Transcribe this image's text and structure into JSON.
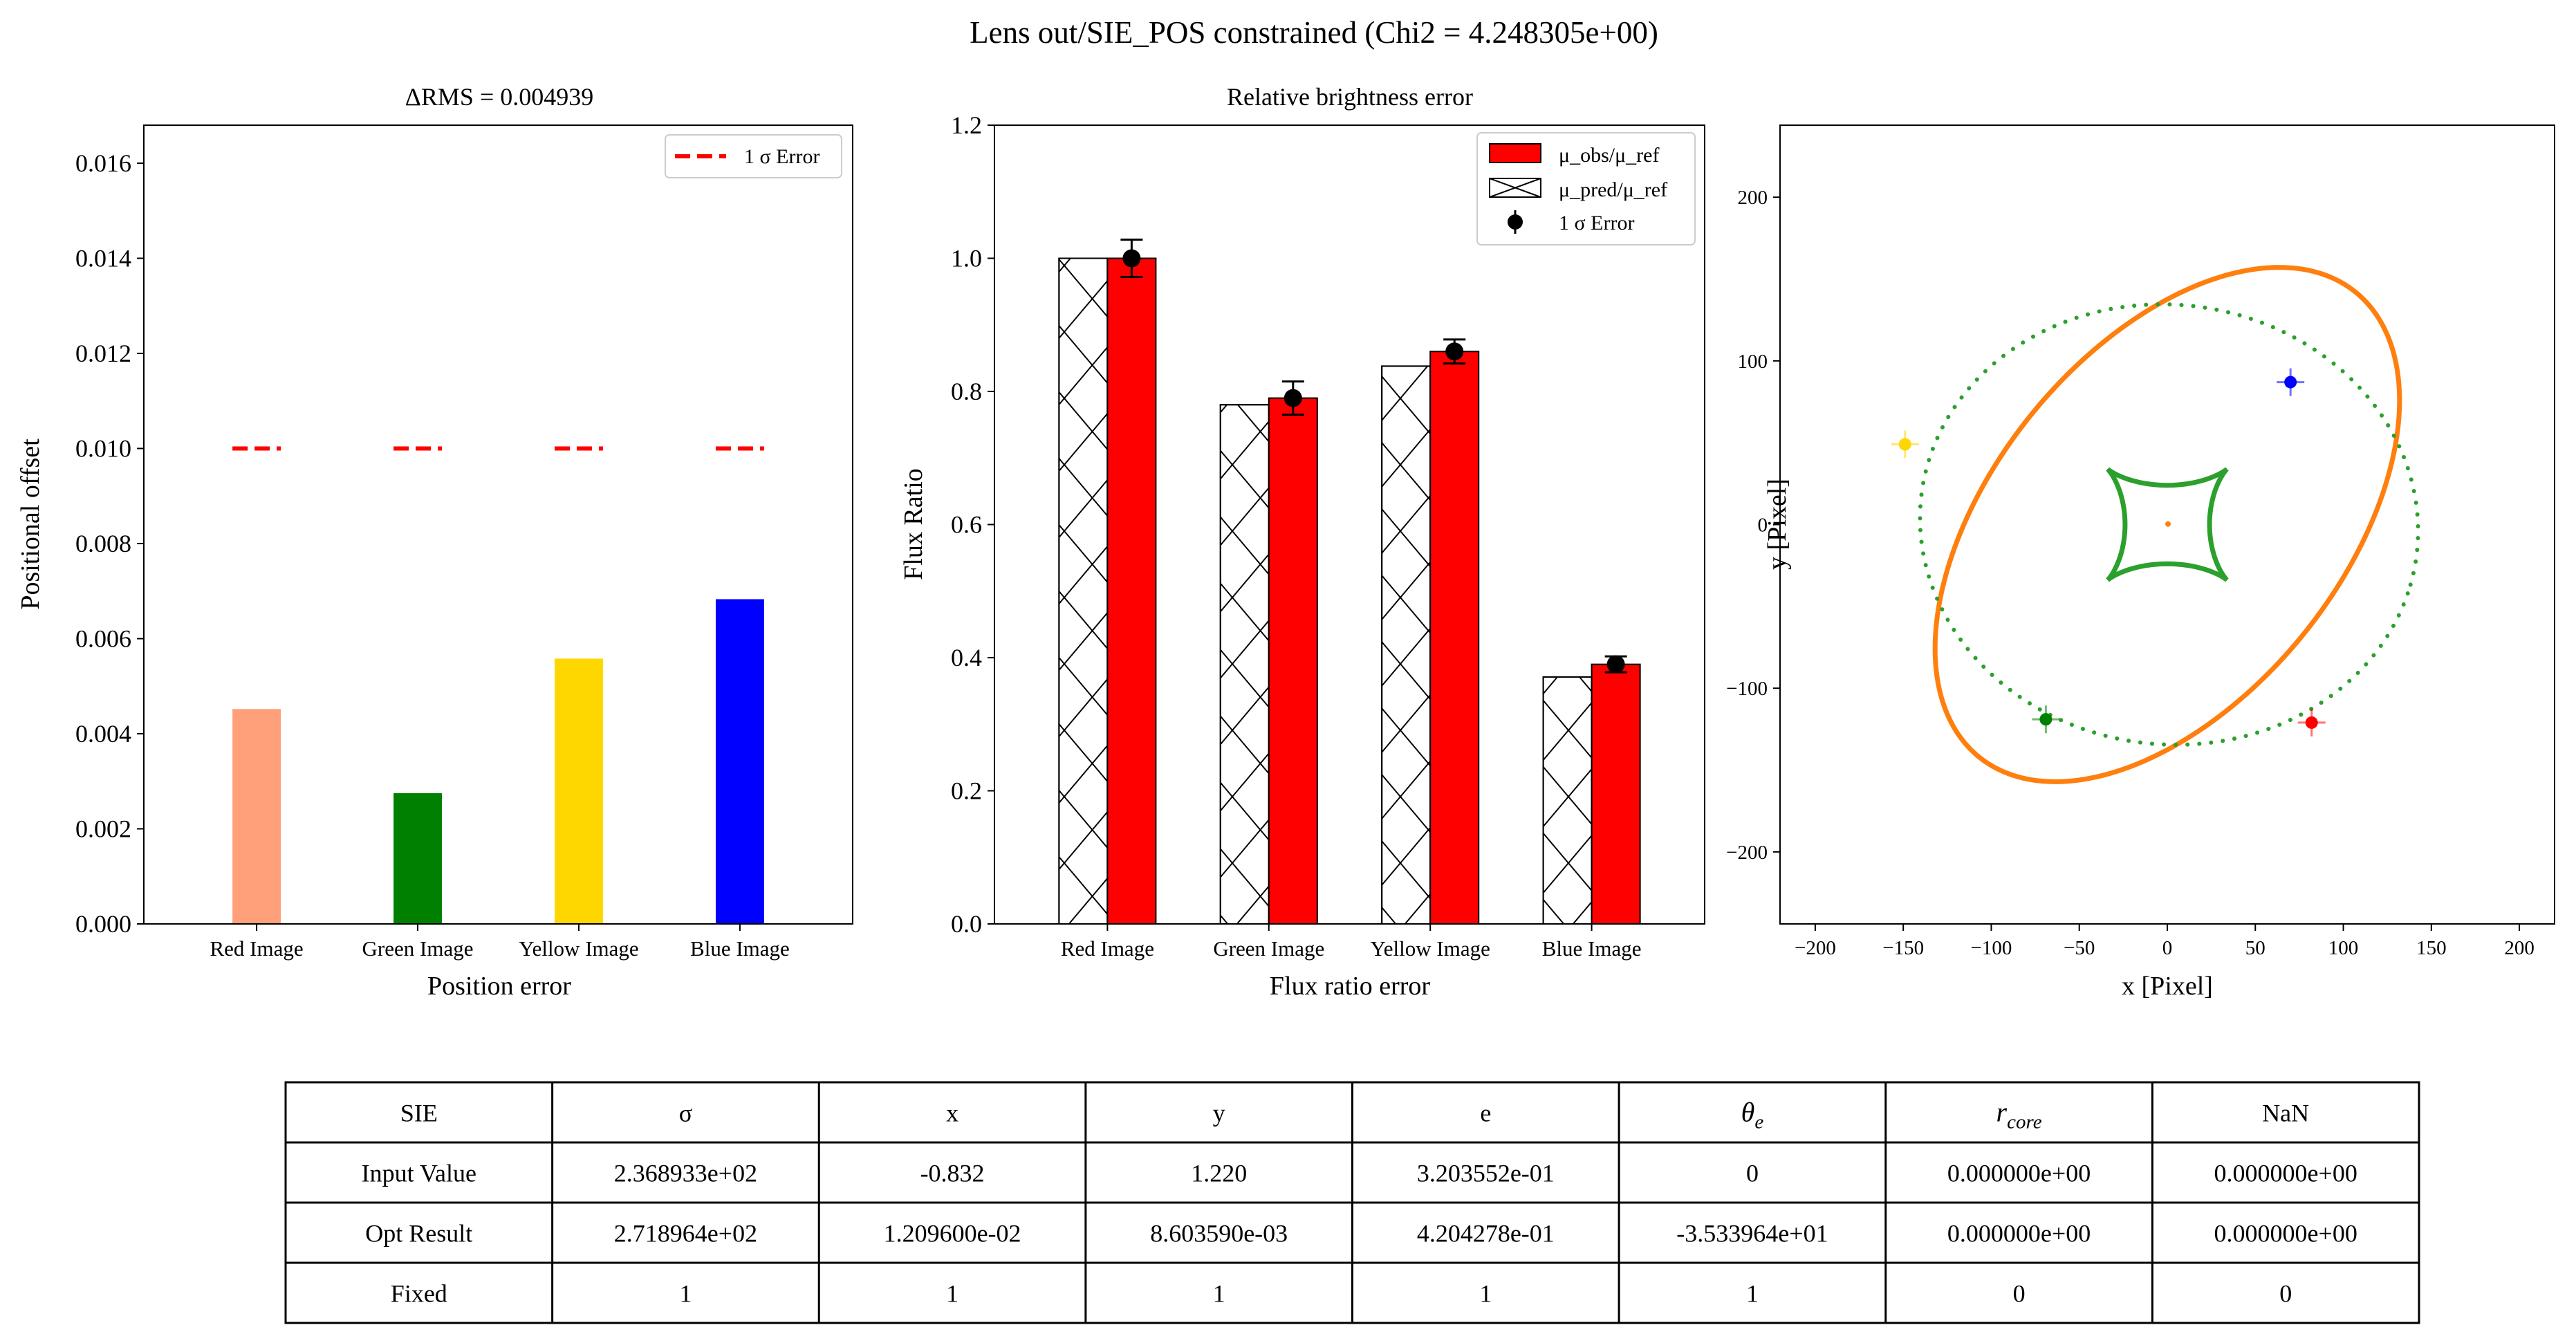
{
  "figure": {
    "suptitle": "Lens out/SIE_POS constrained (Chi2 = 4.248305e+00)"
  },
  "chart_data": [
    {
      "type": "bar",
      "title": "ΔRMS = 0.004939",
      "xlabel": "Position error",
      "ylabel": "Positional offset",
      "ylim": [
        0,
        0.0168
      ],
      "yticks": [
        "0.000",
        "0.002",
        "0.004",
        "0.006",
        "0.008",
        "0.010",
        "0.012",
        "0.014",
        "0.016"
      ],
      "categories": [
        "Red Image",
        "Green Image",
        "Yellow Image",
        "Blue Image"
      ],
      "values": [
        0.00452,
        0.00275,
        0.00558,
        0.00683
      ],
      "colors": [
        "#FFA07A",
        "#008000",
        "#FFD700",
        "#0000FF"
      ],
      "error_line": {
        "name": "1 σ Error",
        "value": 0.01,
        "color": "#FF0000"
      },
      "legend": "upper-right",
      "grid": false
    },
    {
      "type": "bar",
      "title": "Relative brightness error",
      "xlabel": "Flux ratio error",
      "ylabel": "Flux Ratio",
      "ylim": [
        0,
        1.2
      ],
      "yticks": [
        "0.0",
        "0.2",
        "0.4",
        "0.6",
        "0.8",
        "1.0",
        "1.2"
      ],
      "categories": [
        "Red Image",
        "Green Image",
        "Yellow Image",
        "Blue Image"
      ],
      "series": [
        {
          "name": "μ_pred/μ_ref",
          "values": [
            1.0,
            0.78,
            0.838,
            0.371
          ],
          "fill": "hatch"
        },
        {
          "name": "μ_obs/μ_ref",
          "values": [
            1.0,
            0.79,
            0.86,
            0.39
          ],
          "fill": "#FF0000"
        }
      ],
      "errorbars": {
        "name": "1 σ Error",
        "values": [
          1.0,
          0.79,
          0.86,
          0.39
        ],
        "errors": [
          0.028,
          0.025,
          0.018,
          0.012
        ]
      },
      "legend": "upper-right",
      "grid": false
    },
    {
      "type": "scatter",
      "xlabel": "x [Pixel]",
      "ylabel": "y [Pixel]",
      "xlim": [
        -220,
        220
      ],
      "ylim": [
        -244,
        244
      ],
      "xticks": [
        "−200",
        "−150",
        "−100",
        "−50",
        "0",
        "50",
        "100",
        "150",
        "200"
      ],
      "yticks": [
        "−200",
        "−100",
        "0",
        "100",
        "200"
      ],
      "critical_curve": {
        "color": "#FF7F0E",
        "center": [
          0,
          0
        ],
        "a": 178,
        "b": 102,
        "angle_deg": 55
      },
      "caustic_dotted": {
        "color": "#2CA02C",
        "center": [
          1,
          0
        ],
        "a": 142,
        "b": 134,
        "angle_deg": -15
      },
      "caustic_astroid": {
        "color": "#2CA02C",
        "center": [
          0,
          0
        ],
        "radius": 48,
        "angle_deg": 45
      },
      "source": {
        "x": 0.4,
        "y": 0.3,
        "color": "#FF7F0E"
      },
      "images": [
        {
          "name": "Red Image",
          "x": 82,
          "y": -121,
          "color": "#FF0000"
        },
        {
          "name": "Green Image",
          "x": -69,
          "y": -119,
          "color": "#008000"
        },
        {
          "name": "Yellow Image",
          "x": -149,
          "y": 49,
          "color": "#FFD700"
        },
        {
          "name": "Blue Image",
          "x": 70,
          "y": 87,
          "color": "#0000FF"
        }
      ],
      "grid": false
    }
  ],
  "table": {
    "header": [
      "SIE",
      "σ",
      "x",
      "y",
      "e",
      "θe",
      "r_core",
      "NaN"
    ],
    "header_special": {
      "theta": "θ",
      "theta_sub": "e",
      "rcore": "r",
      "rcore_sub": "core"
    },
    "rows": [
      [
        "Input Value",
        "2.368933e+02",
        "-0.832",
        "1.220",
        "3.203552e-01",
        "0",
        "0.000000e+00",
        "0.000000e+00"
      ],
      [
        "Opt Result",
        "2.718964e+02",
        "1.209600e-02",
        "8.603590e-03",
        "4.204278e-01",
        "-3.533964e+01",
        "0.000000e+00",
        "0.000000e+00"
      ],
      [
        "Fixed",
        "1",
        "1",
        "1",
        "1",
        "1",
        "0",
        "0"
      ]
    ]
  }
}
